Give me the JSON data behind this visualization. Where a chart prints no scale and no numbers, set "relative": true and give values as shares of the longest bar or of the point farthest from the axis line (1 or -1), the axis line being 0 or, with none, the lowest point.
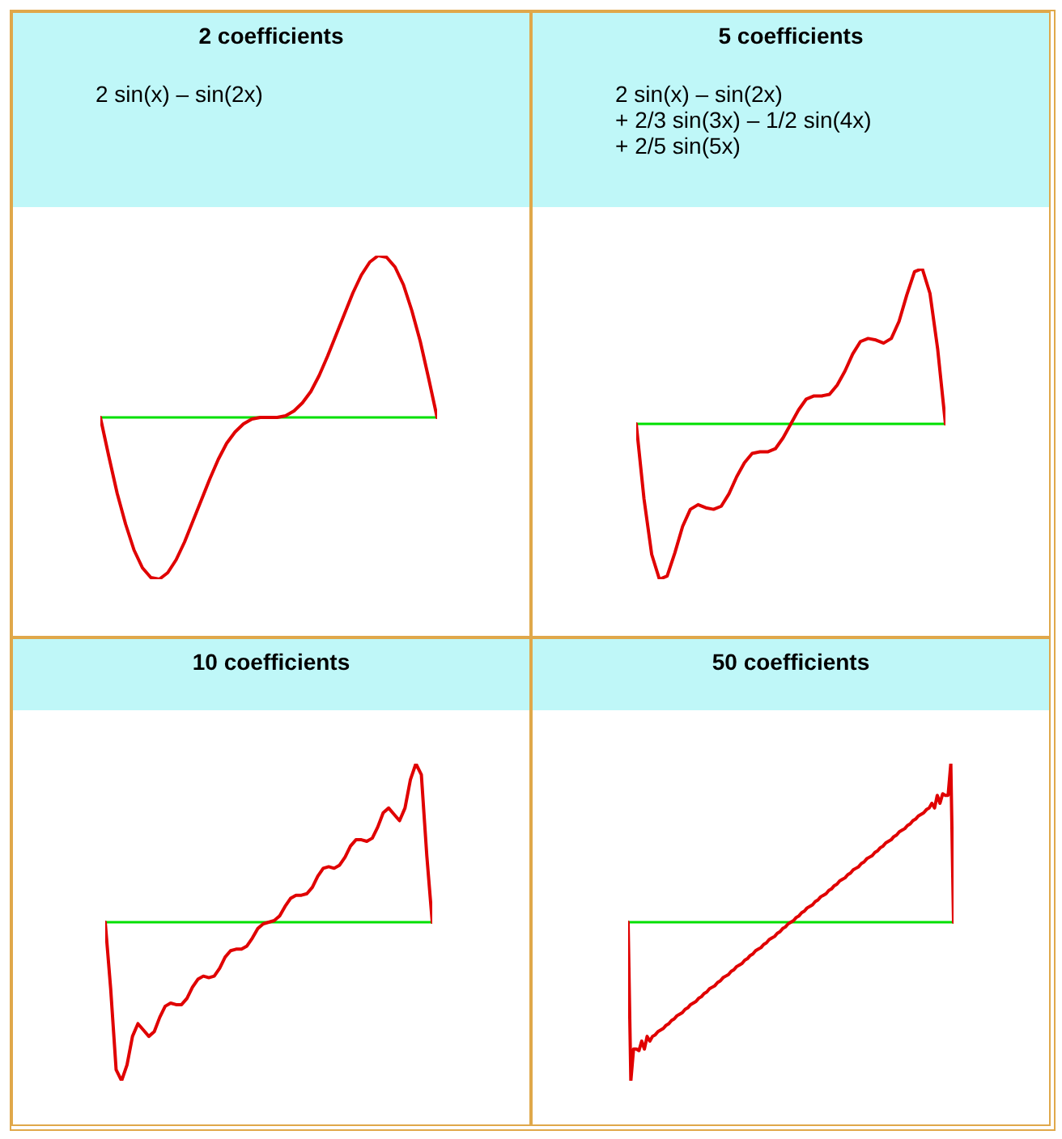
{
  "chart_data": [
    {
      "type": "line",
      "title": "2 coefficients",
      "subtitle": "2 sin(x) – sin(2x)",
      "relative": true,
      "categories": [
        null,
        null,
        null,
        null,
        null,
        null,
        null,
        null,
        null,
        null,
        null,
        null,
        null,
        null,
        null,
        null,
        null,
        null,
        null,
        null,
        null,
        null,
        null,
        null,
        null,
        null,
        null,
        null,
        null,
        null,
        null,
        null,
        null,
        null,
        null,
        null,
        null,
        null,
        null,
        null,
        null
      ],
      "series": [
        {
          "color": "#e00000",
          "values": [
            0,
            -0.24,
            -0.47,
            -0.66,
            -0.82,
            -0.93,
            -0.99,
            -1,
            -0.96,
            -0.88,
            -0.77,
            -0.64,
            -0.51,
            -0.38,
            -0.26,
            -0.16,
            -0.09,
            -0.04,
            -0.01,
            0,
            0,
            0,
            0.01,
            0.04,
            0.09,
            0.16,
            0.26,
            0.38,
            0.51,
            0.64,
            0.77,
            0.88,
            0.96,
            1,
            0.99,
            0.93,
            0.82,
            0.66,
            0.47,
            0.24,
            0
          ]
        }
      ],
      "ref_lines": [
        {
          "axis": "y",
          "value": 0,
          "color": "#00e000"
        }
      ]
    },
    {
      "type": "line",
      "title": "5 coefficients",
      "subtitle": "2 sin(x) – sin(2x)\n+ 2/3 sin(3x) – 1/2 sin(4x)\n+ 2/5 sin(5x)",
      "relative": true,
      "categories": [
        null,
        null,
        null,
        null,
        null,
        null,
        null,
        null,
        null,
        null,
        null,
        null,
        null,
        null,
        null,
        null,
        null,
        null,
        null,
        null,
        null,
        null,
        null,
        null,
        null,
        null,
        null,
        null,
        null,
        null,
        null,
        null,
        null,
        null,
        null,
        null,
        null,
        null,
        null,
        null,
        null
      ],
      "series": [
        {
          "color": "#e00000",
          "values": [
            0,
            -0.48,
            -0.84,
            -1,
            -0.98,
            -0.83,
            -0.66,
            -0.55,
            -0.52,
            -0.54,
            -0.55,
            -0.53,
            -0.45,
            -0.34,
            -0.25,
            -0.19,
            -0.18,
            -0.18,
            -0.16,
            -0.09,
            0,
            0.09,
            0.16,
            0.18,
            0.18,
            0.19,
            0.25,
            0.34,
            0.45,
            0.53,
            0.55,
            0.54,
            0.52,
            0.55,
            0.66,
            0.83,
            0.98,
            1,
            0.84,
            0.48,
            0
          ]
        }
      ],
      "ref_lines": [
        {
          "axis": "y",
          "value": 0,
          "color": "#00e000"
        }
      ]
    },
    {
      "type": "line",
      "title": "10 coefficients",
      "relative": true,
      "categories": [
        null,
        null,
        null,
        null,
        null,
        null,
        null,
        null,
        null,
        null,
        null,
        null,
        null,
        null,
        null,
        null,
        null,
        null,
        null,
        null,
        null,
        null,
        null,
        null,
        null,
        null,
        null,
        null,
        null,
        null,
        null,
        null,
        null,
        null,
        null,
        null,
        null,
        null,
        null,
        null,
        null,
        null,
        null,
        null,
        null,
        null,
        null,
        null,
        null,
        null,
        null,
        null,
        null,
        null,
        null,
        null,
        null,
        null,
        null,
        null,
        null
      ],
      "series": [
        {
          "color": "#e00000",
          "values": [
            0,
            -0.42,
            -0.93,
            -1,
            -0.9,
            -0.72,
            -0.64,
            -0.68,
            -0.72,
            -0.69,
            -0.6,
            -0.53,
            -0.51,
            -0.52,
            -0.52,
            -0.48,
            -0.41,
            -0.36,
            -0.34,
            -0.35,
            -0.34,
            -0.29,
            -0.22,
            -0.18,
            -0.17,
            -0.17,
            -0.15,
            -0.1,
            -0.04,
            -0.01,
            0,
            0.01,
            0.04,
            0.1,
            0.15,
            0.17,
            0.17,
            0.18,
            0.22,
            0.29,
            0.34,
            0.35,
            0.34,
            0.36,
            0.41,
            0.48,
            0.52,
            0.52,
            0.51,
            0.53,
            0.6,
            0.69,
            0.72,
            0.68,
            0.64,
            0.72,
            0.9,
            1,
            0.93,
            0.42,
            0
          ]
        }
      ],
      "ref_lines": [
        {
          "axis": "y",
          "value": 0,
          "color": "#00e000"
        }
      ]
    },
    {
      "type": "line",
      "title": "50 coefficients",
      "relative": true,
      "categories": [
        null,
        null,
        null,
        null,
        null,
        null,
        null,
        null,
        null,
        null,
        null,
        null,
        null,
        null,
        null,
        null,
        null,
        null,
        null,
        null,
        null,
        null,
        null,
        null,
        null,
        null,
        null,
        null,
        null,
        null,
        null,
        null,
        null,
        null,
        null,
        null,
        null,
        null,
        null,
        null,
        null,
        null,
        null,
        null,
        null,
        null,
        null,
        null,
        null,
        null,
        null,
        null,
        null,
        null,
        null,
        null,
        null,
        null,
        null,
        null,
        null,
        null,
        null,
        null,
        null,
        null,
        null,
        null,
        null,
        null,
        null,
        null,
        null,
        null,
        null,
        null,
        null,
        null,
        null,
        null,
        null,
        null,
        null,
        null,
        null,
        null,
        null,
        null,
        null,
        null,
        null,
        null,
        null,
        null,
        null,
        null,
        null,
        null,
        null,
        null,
        null,
        null,
        null,
        null,
        null,
        null,
        null,
        null,
        null,
        null,
        null,
        null,
        null,
        null,
        null,
        null,
        null,
        null,
        null,
        null,
        null
      ],
      "series": [
        {
          "color": "#e00000",
          "values": [
            0,
            -1,
            -0.8,
            -0.8,
            -0.81,
            -0.75,
            -0.8,
            -0.72,
            -0.75,
            -0.72,
            -0.71,
            -0.69,
            -0.68,
            -0.67,
            -0.65,
            -0.64,
            -0.62,
            -0.61,
            -0.59,
            -0.58,
            -0.57,
            -0.55,
            -0.54,
            -0.52,
            -0.51,
            -0.5,
            -0.48,
            -0.47,
            -0.45,
            -0.44,
            -0.42,
            -0.41,
            -0.4,
            -0.38,
            -0.37,
            -0.35,
            -0.34,
            -0.33,
            -0.31,
            -0.3,
            -0.28,
            -0.27,
            -0.26,
            -0.24,
            -0.23,
            -0.21,
            -0.2,
            -0.18,
            -0.17,
            -0.16,
            -0.14,
            -0.13,
            -0.11,
            -0.1,
            -0.09,
            -0.07,
            -0.06,
            -0.04,
            -0.03,
            -0.01,
            0,
            0.01,
            0.03,
            0.04,
            0.06,
            0.07,
            0.09,
            0.1,
            0.11,
            0.13,
            0.14,
            0.16,
            0.17,
            0.18,
            0.2,
            0.21,
            0.23,
            0.24,
            0.26,
            0.27,
            0.28,
            0.3,
            0.31,
            0.33,
            0.34,
            0.35,
            0.37,
            0.38,
            0.4,
            0.41,
            0.42,
            0.44,
            0.45,
            0.47,
            0.48,
            0.5,
            0.51,
            0.52,
            0.54,
            0.55,
            0.57,
            0.58,
            0.59,
            0.61,
            0.62,
            0.64,
            0.65,
            0.67,
            0.68,
            0.69,
            0.71,
            0.72,
            0.75,
            0.72,
            0.8,
            0.75,
            0.81,
            0.8,
            0.8,
            1,
            0
          ]
        }
      ],
      "ref_lines": [
        {
          "axis": "y",
          "value": 0,
          "color": "#00e000"
        }
      ]
    }
  ]
}
